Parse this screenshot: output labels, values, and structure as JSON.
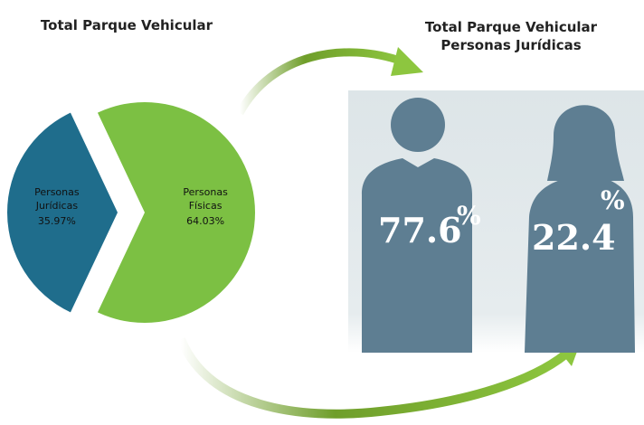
{
  "chart_data": [
    {
      "type": "pie",
      "title": "Total Parque Vehicular",
      "categories": [
        "Personas Jurídicas",
        "Personas Físicas"
      ],
      "values": [
        35.97,
        64.03
      ],
      "value_labels": [
        "35.97%",
        "64.03%"
      ],
      "colors": [
        "#1f6d8c",
        "#7cc043"
      ]
    },
    {
      "type": "pictograph",
      "title": "Total Parque Vehicular\nPersonas Jurídicas",
      "categories": [
        null,
        null
      ],
      "values": [
        77.6,
        22.4
      ],
      "unit": "%",
      "color": "#5e7e92"
    }
  ]
}
